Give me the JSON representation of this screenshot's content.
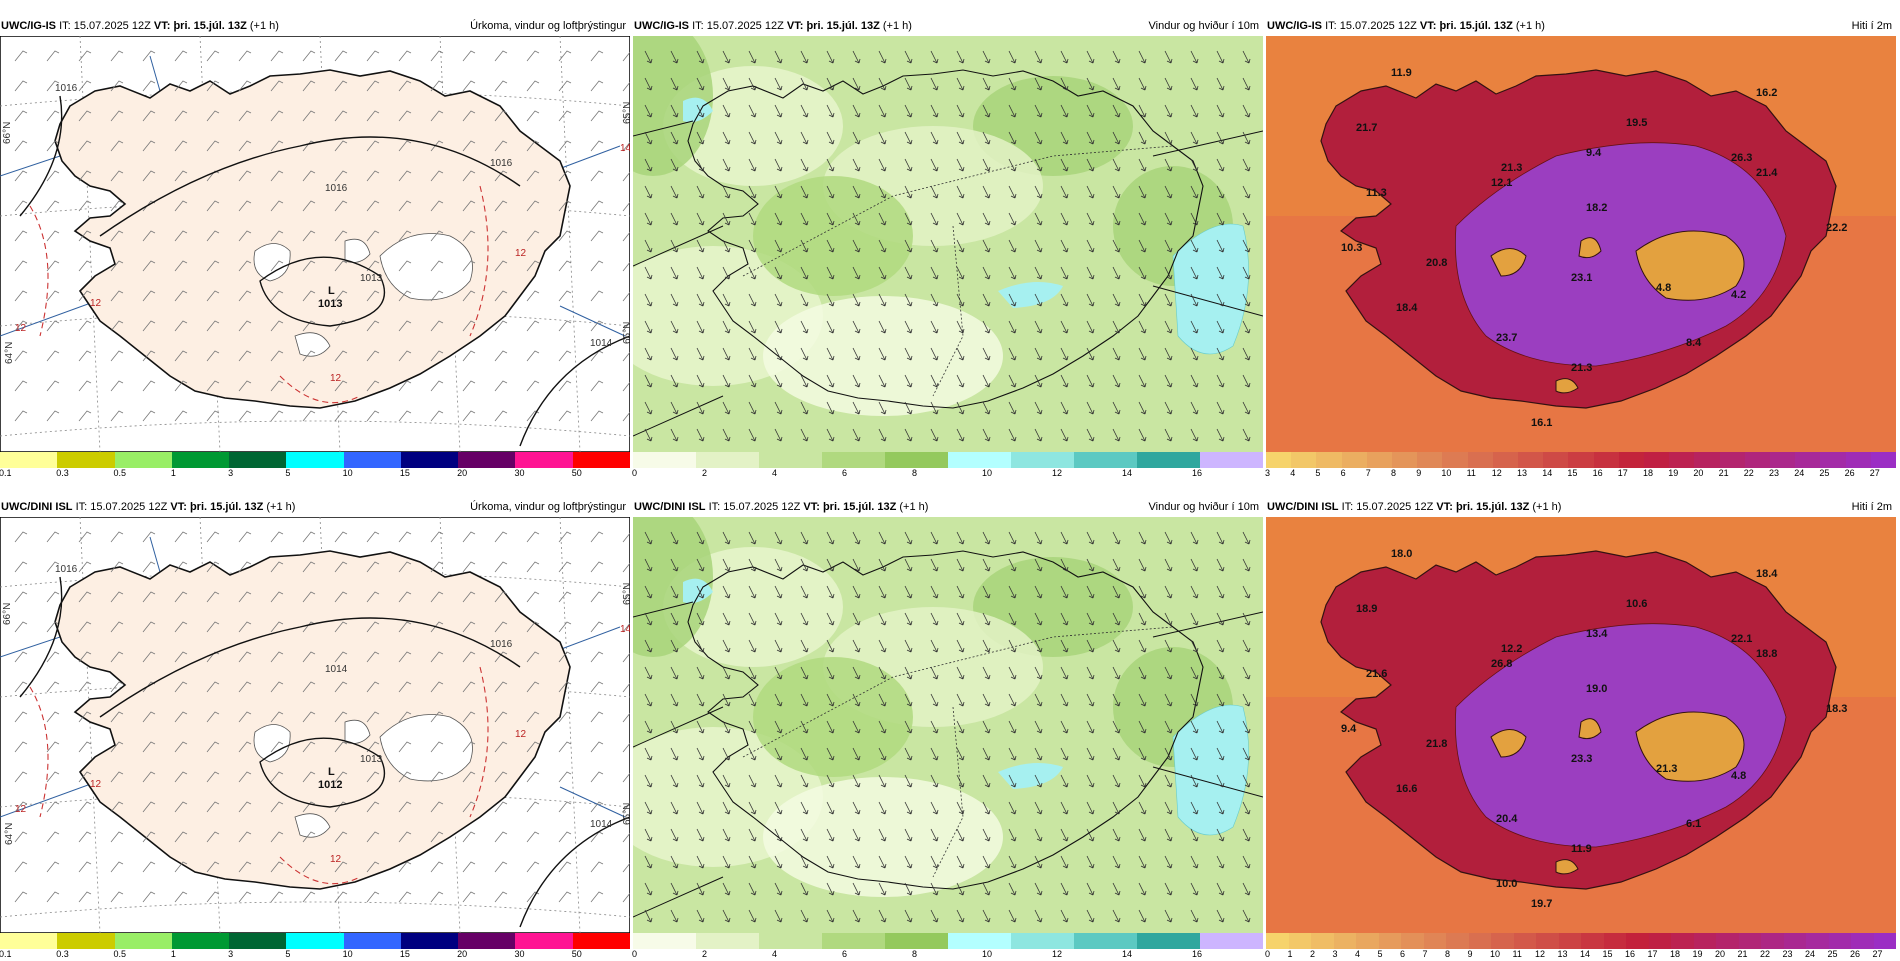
{
  "rows": [
    {
      "model": "UWC/IG-IS",
      "it_label": "IT:",
      "it_value": "15.07.2025 12Z",
      "vt_label": "VT:",
      "vt_value": "þri. 15.júl. 13Z",
      "lead": "(+1 h)",
      "panels": [
        {
          "title": "Úrkoma, vindur og loftþrýstingur",
          "type": "precip",
          "low_label": "L",
          "low_value": "1013",
          "isobars": [
            "1016",
            "1016",
            "1016",
            "1014",
            "1013"
          ],
          "temp_labels": [
            "12",
            "12",
            "12",
            "12",
            "14"
          ],
          "lat_labels": [
            "66°N",
            "65°N",
            "64°N",
            "65°N"
          ],
          "colorbar_ticks": [
            "0.1",
            "0.3",
            "0.5",
            "1",
            "3",
            "5",
            "10",
            "15",
            "20",
            "30",
            "50"
          ]
        },
        {
          "title": "Vindur og hviður í 10m",
          "type": "wind",
          "colorbar_ticks": [
            "0",
            "2",
            "4",
            "6",
            "8",
            "10",
            "12",
            "14",
            "16"
          ]
        },
        {
          "title": "Hiti í 2m",
          "type": "temp",
          "temp_values": [
            "11.9",
            "16.2",
            "21.7",
            "19.5",
            "11.3",
            "21.3",
            "9.4",
            "12.1",
            "26.3",
            "21.4",
            "18.2",
            "22.2",
            "10.3",
            "20.8",
            "23.1",
            "4.8",
            "4.2",
            "18.4",
            "23.7",
            "8.4",
            "21.3",
            "16.1"
          ],
          "colorbar_ticks": [
            "3",
            "4",
            "5",
            "6",
            "7",
            "8",
            "9",
            "10",
            "11",
            "12",
            "13",
            "14",
            "15",
            "16",
            "17",
            "18",
            "19",
            "20",
            "21",
            "22",
            "23",
            "24",
            "25",
            "26",
            "27"
          ]
        }
      ]
    },
    {
      "model": "UWC/DINI ISL",
      "it_label": "IT:",
      "it_value": "15.07.2025 12Z",
      "vt_label": "VT:",
      "vt_value": "þri. 15.júl. 13Z",
      "lead": "(+1 h)",
      "panels": [
        {
          "title": "Úrkoma, vindur og loftþrýstingur",
          "type": "precip",
          "low_label": "L",
          "low_value": "1012",
          "isobars": [
            "1016",
            "1016",
            "1014",
            "1014",
            "1013"
          ],
          "temp_labels": [
            "12",
            "12",
            "12",
            "12",
            "14"
          ],
          "lat_labels": [
            "66°N",
            "65°N",
            "64°N",
            "65°N"
          ],
          "colorbar_ticks": [
            "0.1",
            "0.3",
            "0.5",
            "1",
            "3",
            "5",
            "10",
            "15",
            "20",
            "30",
            "50"
          ]
        },
        {
          "title": "Vindur og hviður í 10m",
          "type": "wind",
          "colorbar_ticks": [
            "0",
            "2",
            "4",
            "6",
            "8",
            "10",
            "12",
            "14",
            "16"
          ]
        },
        {
          "title": "Hiti í 2m",
          "type": "temp",
          "temp_values": [
            "18.0",
            "18.4",
            "18.9",
            "10.6",
            "21.6",
            "12.2",
            "13.4",
            "26.8",
            "22.1",
            "18.8",
            "19.0",
            "18.3",
            "9.4",
            "21.8",
            "23.3",
            "21.3",
            "4.8",
            "16.6",
            "20.4",
            "6.1",
            "11.9",
            "19.7",
            "10.0"
          ],
          "colorbar_ticks": [
            "0",
            "1",
            "2",
            "3",
            "4",
            "5",
            "6",
            "7",
            "8",
            "9",
            "10",
            "11",
            "12",
            "13",
            "14",
            "15",
            "16",
            "17",
            "18",
            "19",
            "20",
            "21",
            "22",
            "23",
            "24",
            "25",
            "26",
            "27"
          ]
        }
      ]
    }
  ],
  "colors": {
    "land_precip": "#fdefe3",
    "sea_precip": "#ffffff",
    "wind_bg": "#c9e6a2",
    "temp_bg": "#e9823f",
    "precip_scale": [
      "#ffff99",
      "#cccc00",
      "#99ee66",
      "#009933",
      "#006633",
      "#00ffff",
      "#3366ff",
      "#000080",
      "#660066",
      "#ff1493",
      "#ff0000"
    ],
    "wind_scale": [
      "#f7fbe8",
      "#e3f2c6",
      "#c9e6a2",
      "#b0d97f",
      "#94c95d",
      "#b3ffff",
      "#8ee6e0",
      "#5cc9c2",
      "#2fa79e",
      "#cdb5ff"
    ],
    "temp_scale_start": "#f6d36b",
    "temp_scale_mid": "#c21f3a",
    "temp_scale_end": "#9b2ec4"
  }
}
